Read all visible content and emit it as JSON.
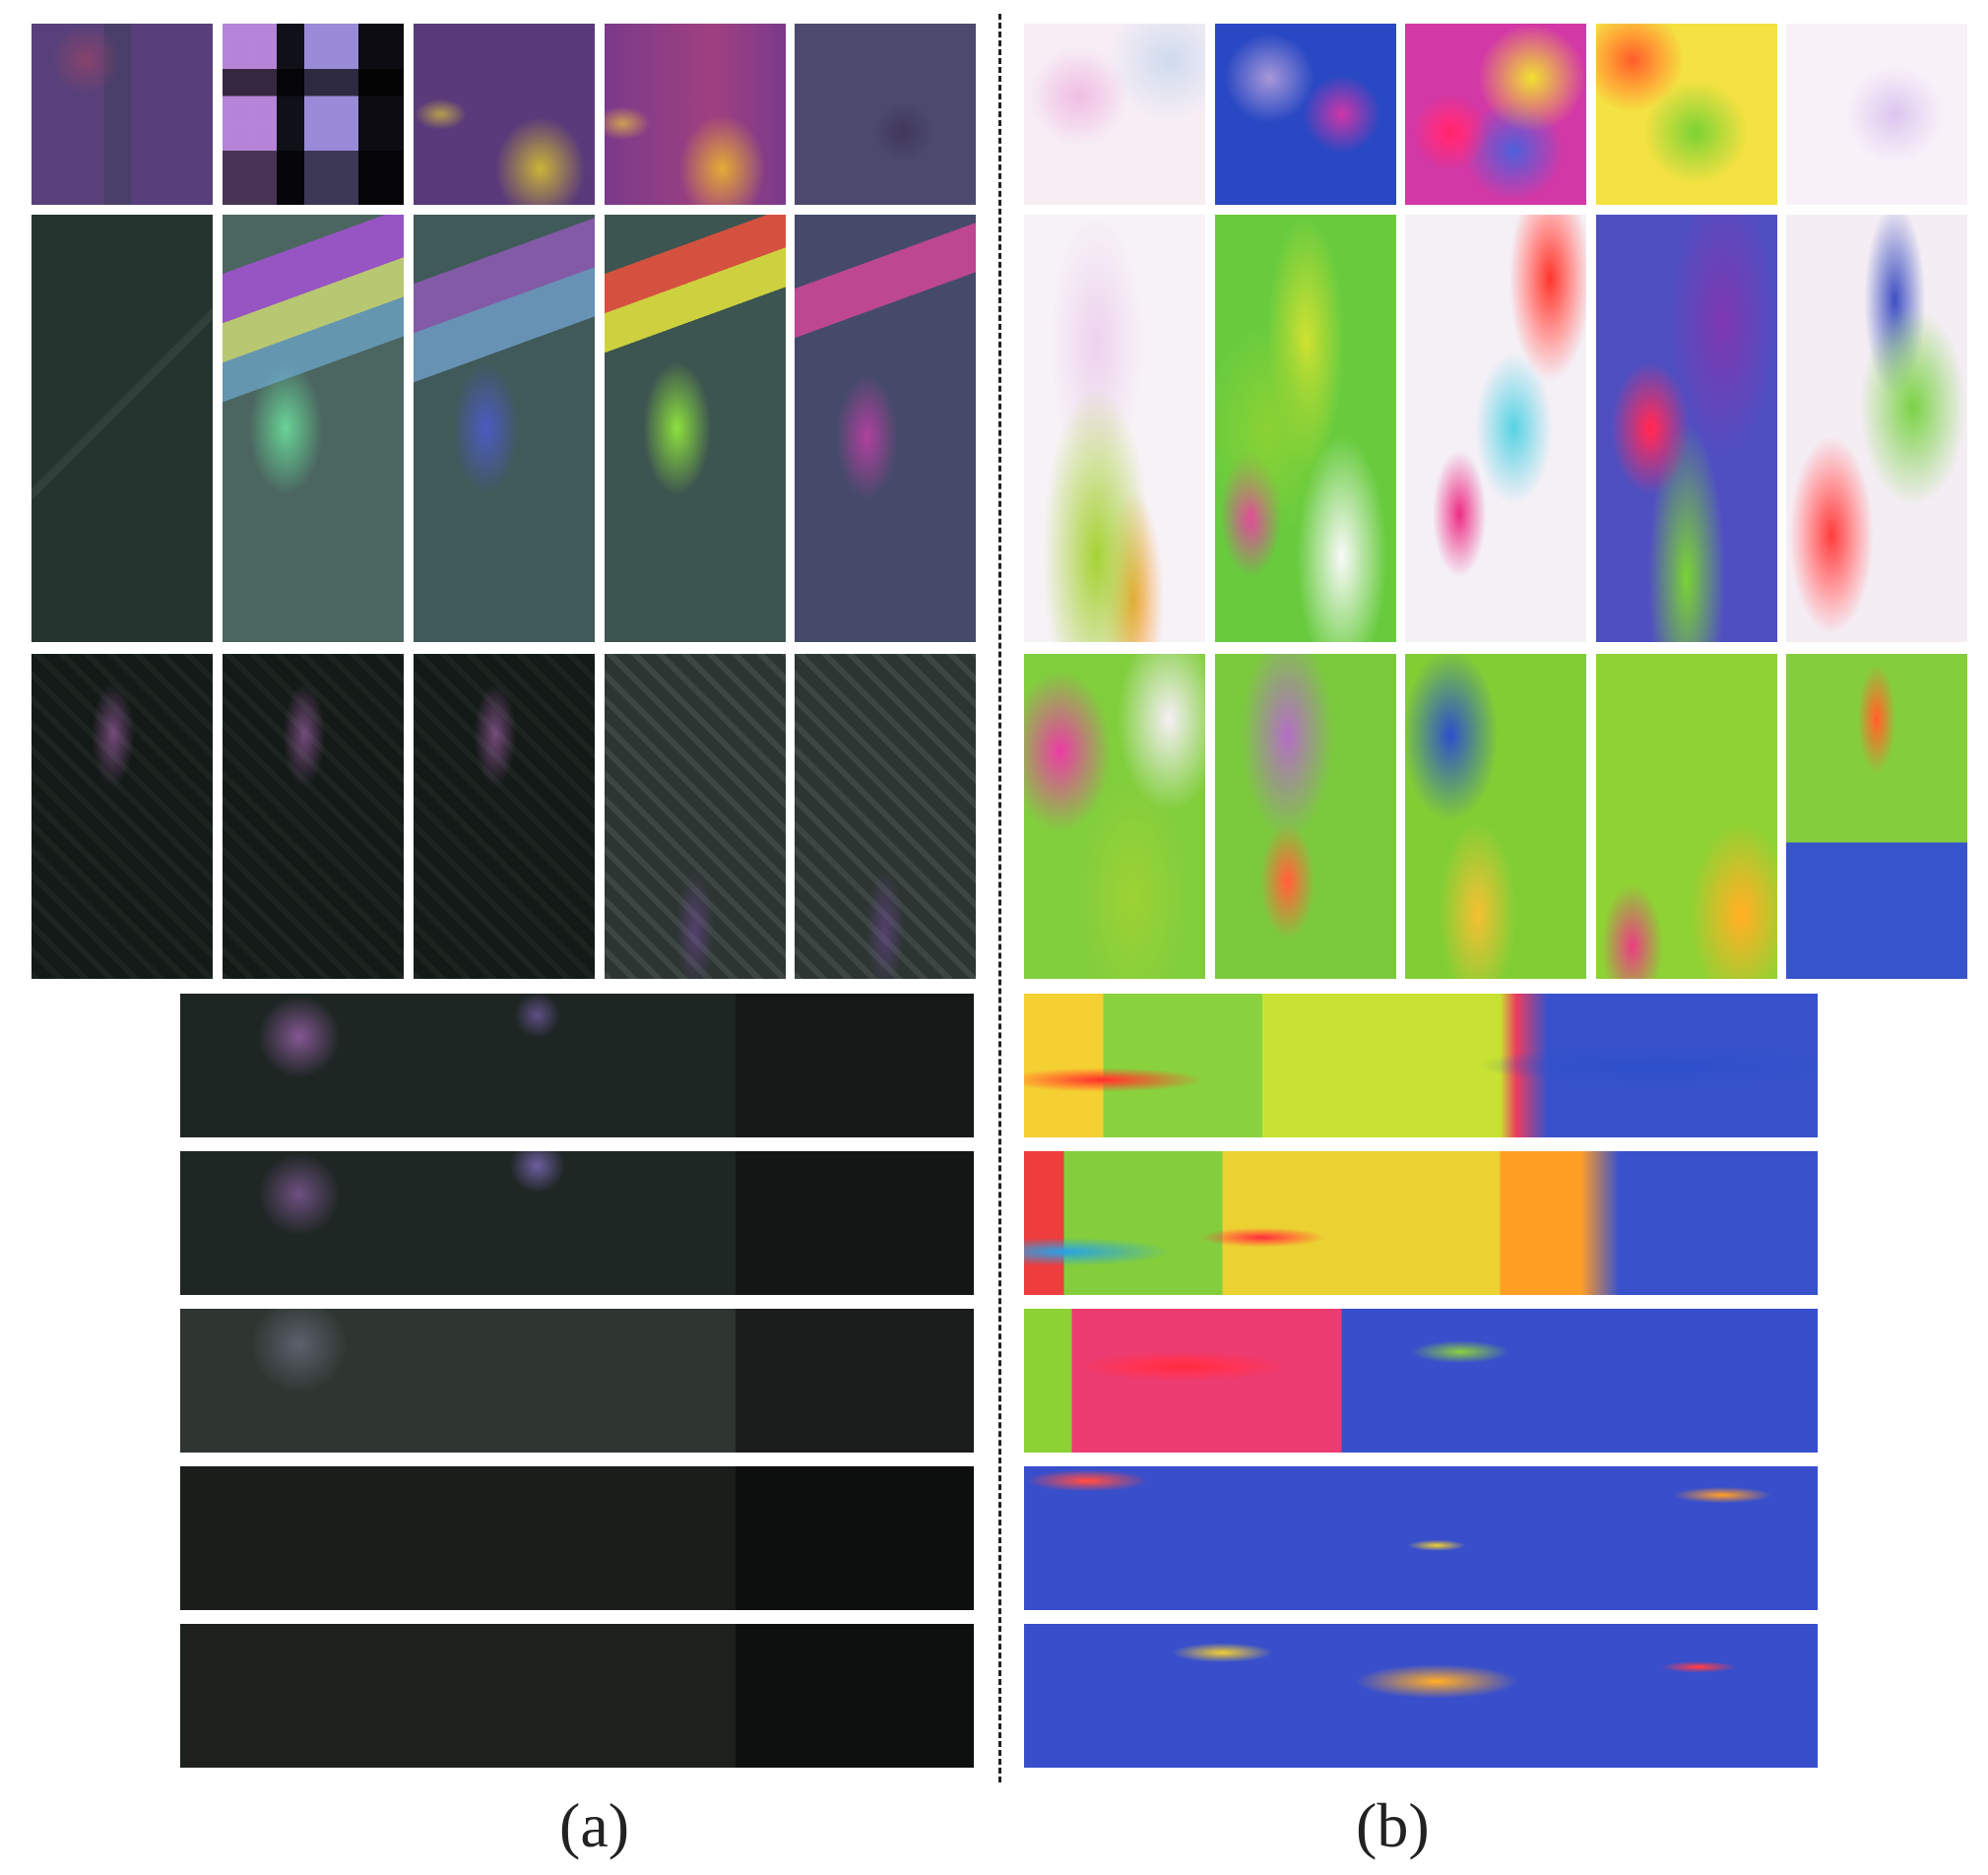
{
  "captions": {
    "left": "(a)",
    "right": "(b)"
  }
}
